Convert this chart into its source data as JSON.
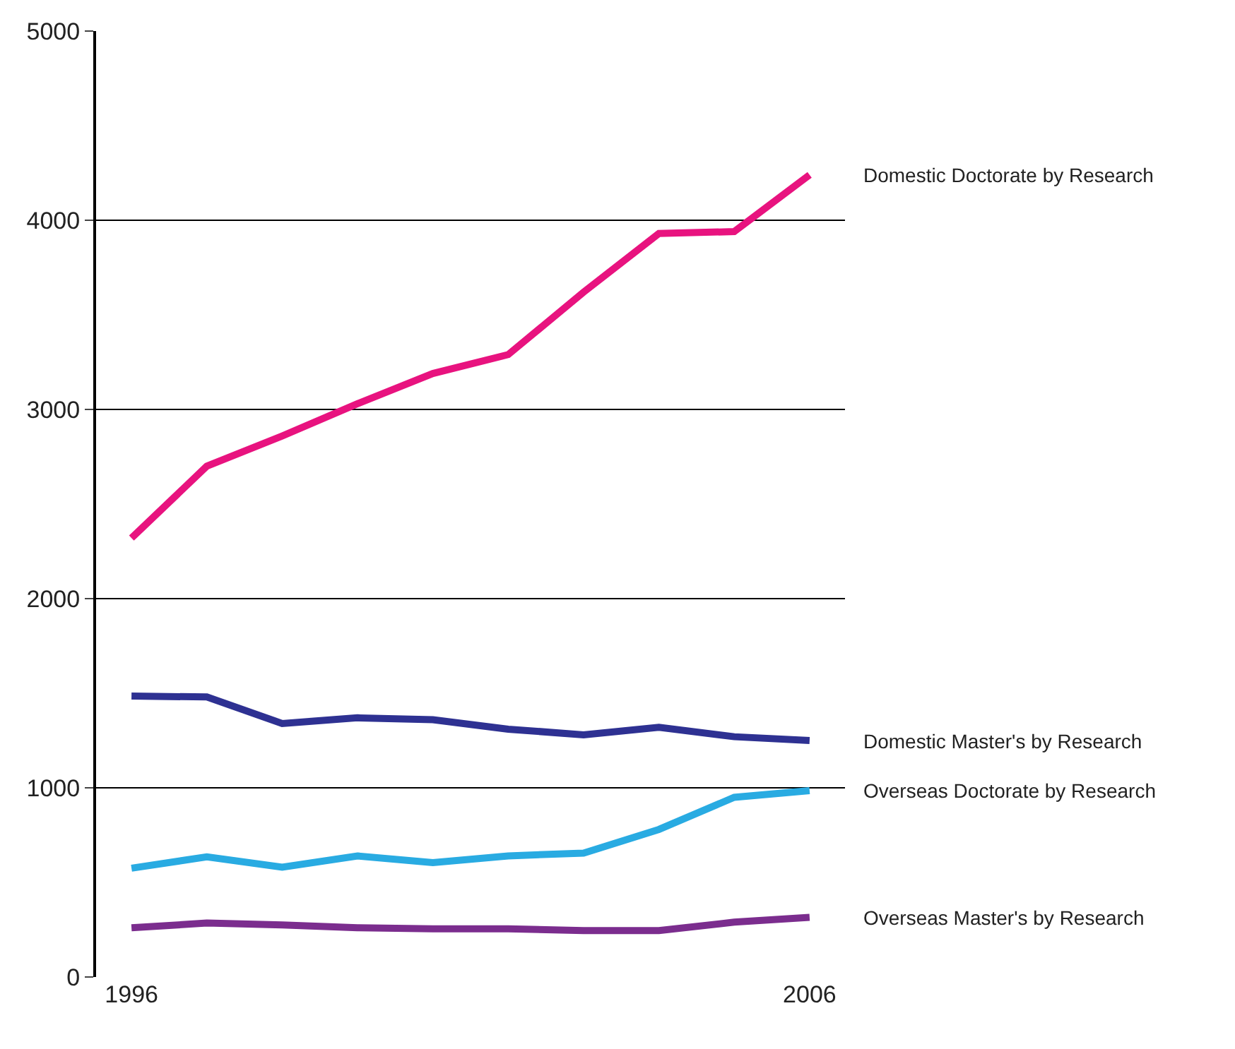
{
  "chart_data": {
    "type": "line",
    "categories": [
      "1996",
      null,
      null,
      null,
      null,
      null,
      null,
      null,
      null,
      "2006"
    ],
    "series": [
      {
        "name": "Domestic Doctorate by Research",
        "color": "#e8137f",
        "values": [
          2320,
          2700,
          2860,
          3030,
          3190,
          3290,
          3620,
          3930,
          3940,
          4240
        ]
      },
      {
        "name": "Domestic Master's by Research",
        "color": "#2e3192",
        "values": [
          1485,
          1480,
          1340,
          1370,
          1360,
          1310,
          1280,
          1320,
          1270,
          1250
        ]
      },
      {
        "name": "Overseas Doctorate by Research",
        "color": "#29abe2",
        "values": [
          575,
          635,
          580,
          640,
          605,
          640,
          655,
          780,
          950,
          985
        ]
      },
      {
        "name": "Overseas Master's by Research",
        "color": "#7b2d8e",
        "values": [
          260,
          285,
          275,
          260,
          255,
          255,
          245,
          245,
          290,
          315
        ]
      }
    ],
    "ylim": [
      0,
      5000
    ],
    "yticks": [
      0,
      1000,
      2000,
      3000,
      4000,
      5000
    ],
    "grid": "y",
    "legend": false,
    "marker": "none",
    "line_style": "solid"
  }
}
